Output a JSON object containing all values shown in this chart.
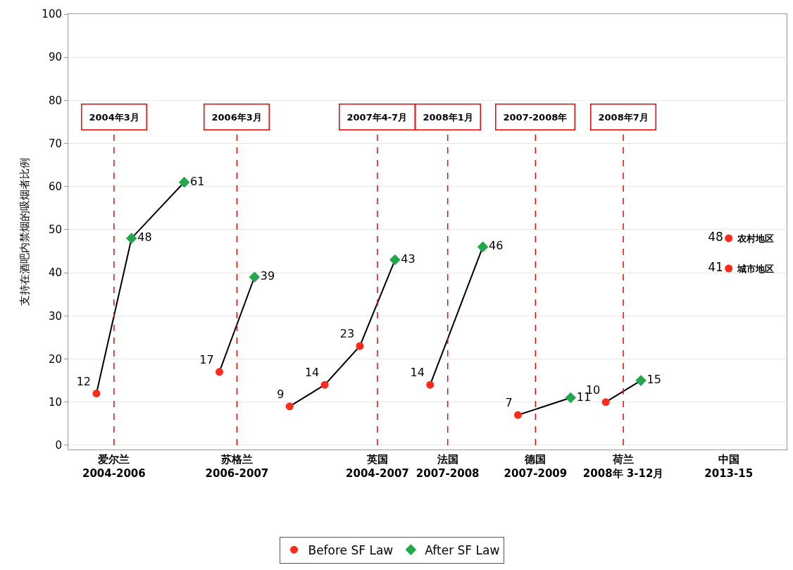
{
  "chart_data": {
    "type": "scatter",
    "ylabel": "支持在酒吧内禁烟的吸烟者比例",
    "categories": [
      null,
      null,
      "爱尔兰\n2004-2006",
      null,
      null,
      null,
      null,
      null,
      null,
      "苏格兰\n2006-2007",
      null,
      null,
      null,
      null,
      null,
      null,
      null,
      "英国\n2004-2007",
      null,
      null,
      null,
      "法国\n2007-2008",
      null,
      null,
      null,
      null,
      "德国\n2007-2009",
      null,
      null,
      null,
      null,
      "荷兰\n2008年 3-12月",
      null,
      null,
      null,
      null,
      null,
      "中国\n2013-15",
      null,
      null,
      null
    ],
    "ylim": [
      -1,
      100
    ],
    "yticks": [
      0,
      10,
      20,
      30,
      40,
      50,
      60,
      70,
      80,
      90,
      100
    ],
    "grid": "y",
    "legend": "bottom",
    "series": [
      {
        "type": "line",
        "color": "#000000",
        "marker": "none",
        "values": [
          null,
          12,
          null,
          48,
          null,
          null,
          61,
          null,
          null,
          null,
          null,
          null,
          null,
          null,
          null,
          null,
          null,
          null,
          null,
          null,
          null,
          null,
          null,
          null,
          null,
          null,
          null,
          null,
          null,
          null,
          null,
          null,
          null,
          null,
          null,
          null,
          null,
          null,
          null,
          null,
          null
        ]
      },
      {
        "type": "line",
        "color": "#000000",
        "marker": "none",
        "values": [
          null,
          null,
          null,
          null,
          null,
          null,
          null,
          null,
          17,
          null,
          39,
          null,
          null,
          null,
          null,
          null,
          null,
          null,
          null,
          null,
          null,
          null,
          null,
          null,
          null,
          null,
          null,
          null,
          null,
          null,
          null,
          null,
          null,
          null,
          null,
          null,
          null,
          null,
          null,
          null,
          null
        ]
      },
      {
        "type": "line",
        "color": "#000000",
        "marker": "none",
        "values": [
          null,
          null,
          null,
          null,
          null,
          null,
          null,
          null,
          null,
          null,
          null,
          null,
          9,
          null,
          14,
          null,
          23,
          null,
          43,
          null,
          null,
          null,
          null,
          null,
          null,
          null,
          null,
          null,
          null,
          null,
          null,
          null,
          null,
          null,
          null,
          null,
          null,
          null,
          null,
          null,
          null
        ]
      },
      {
        "type": "line",
        "color": "#000000",
        "marker": "none",
        "values": [
          null,
          null,
          null,
          null,
          null,
          null,
          null,
          null,
          null,
          null,
          null,
          null,
          null,
          null,
          null,
          null,
          null,
          null,
          null,
          null,
          14,
          null,
          null,
          46,
          null,
          null,
          null,
          null,
          null,
          null,
          null,
          null,
          null,
          null,
          null,
          null,
          null,
          null,
          null,
          null,
          null
        ]
      },
      {
        "type": "line",
        "color": "#000000",
        "marker": "none",
        "values": [
          null,
          null,
          null,
          null,
          null,
          null,
          null,
          null,
          null,
          null,
          null,
          null,
          null,
          null,
          null,
          null,
          null,
          null,
          null,
          null,
          null,
          null,
          null,
          null,
          null,
          7,
          null,
          null,
          11,
          null,
          null,
          null,
          null,
          null,
          null,
          null,
          null,
          null,
          null,
          null,
          null
        ]
      },
      {
        "type": "line",
        "color": "#000000",
        "marker": "none",
        "values": [
          null,
          null,
          null,
          null,
          null,
          null,
          null,
          null,
          null,
          null,
          null,
          null,
          null,
          null,
          null,
          null,
          null,
          null,
          null,
          null,
          null,
          null,
          null,
          null,
          null,
          null,
          null,
          null,
          null,
          null,
          10,
          null,
          15,
          null,
          null,
          null,
          null,
          null,
          null,
          null,
          null
        ]
      },
      {
        "name": "Before SF Law",
        "color": "#ff2a1a",
        "marker": "circle",
        "values": [
          null,
          12,
          null,
          null,
          null,
          null,
          null,
          null,
          17,
          null,
          null,
          null,
          9,
          null,
          14,
          null,
          23,
          null,
          null,
          null,
          14,
          null,
          null,
          null,
          null,
          7,
          null,
          null,
          null,
          null,
          10,
          null,
          null,
          null,
          null,
          null,
          null,
          null,
          null,
          null,
          null
        ],
        "value_labels": [
          null,
          "12",
          null,
          null,
          null,
          null,
          null,
          null,
          "17",
          null,
          null,
          null,
          "9",
          null,
          "14",
          null,
          "23",
          null,
          null,
          null,
          "14",
          null,
          null,
          null,
          null,
          "7",
          null,
          null,
          null,
          null,
          "10",
          null,
          null,
          null,
          null,
          null,
          null,
          null,
          null,
          null,
          null
        ]
      },
      {
        "name": "After SF Law",
        "color": "#22a84a",
        "marker": "diamond",
        "values": [
          null,
          null,
          null,
          48,
          null,
          null,
          61,
          null,
          null,
          null,
          39,
          null,
          null,
          null,
          null,
          null,
          null,
          null,
          43,
          null,
          null,
          null,
          null,
          46,
          null,
          null,
          null,
          null,
          11,
          null,
          null,
          null,
          15,
          null,
          null,
          null,
          null,
          null,
          null,
          null,
          null
        ],
        "value_labels": [
          null,
          null,
          null,
          "48",
          null,
          null,
          "61",
          null,
          null,
          null,
          "39",
          null,
          null,
          null,
          null,
          null,
          null,
          null,
          "43",
          null,
          null,
          null,
          null,
          "46",
          null,
          null,
          null,
          null,
          "11",
          null,
          null,
          null,
          "15",
          null,
          null,
          null,
          null,
          null,
          null,
          null,
          null
        ]
      },
      {
        "name": "农村地区",
        "color": "#ff2a1a",
        "marker": "circle",
        "values": [
          null,
          null,
          null,
          null,
          null,
          null,
          null,
          null,
          null,
          null,
          null,
          null,
          null,
          null,
          null,
          null,
          null,
          null,
          null,
          null,
          null,
          null,
          null,
          null,
          null,
          null,
          null,
          null,
          null,
          null,
          null,
          null,
          null,
          null,
          null,
          null,
          null,
          48,
          null,
          null,
          null
        ],
        "value_labels": [
          null,
          null,
          null,
          null,
          null,
          null,
          null,
          null,
          null,
          null,
          null,
          null,
          null,
          null,
          null,
          null,
          null,
          null,
          null,
          null,
          null,
          null,
          null,
          null,
          null,
          null,
          null,
          null,
          null,
          null,
          null,
          null,
          null,
          null,
          null,
          null,
          null,
          "48",
          null,
          null,
          null
        ]
      },
      {
        "name": "城市地区",
        "color": "#ff2a1a",
        "marker": "circle",
        "values": [
          null,
          null,
          null,
          null,
          null,
          null,
          null,
          null,
          null,
          null,
          null,
          null,
          null,
          null,
          null,
          null,
          null,
          null,
          null,
          null,
          null,
          null,
          null,
          null,
          null,
          null,
          null,
          null,
          null,
          null,
          null,
          null,
          null,
          null,
          null,
          null,
          null,
          41,
          null,
          null,
          null
        ],
        "value_labels": [
          null,
          null,
          null,
          null,
          null,
          null,
          null,
          null,
          null,
          null,
          null,
          null,
          null,
          null,
          null,
          null,
          null,
          null,
          null,
          null,
          null,
          null,
          null,
          null,
          null,
          null,
          null,
          null,
          null,
          null,
          null,
          null,
          null,
          null,
          null,
          null,
          null,
          "41",
          null,
          null,
          null
        ]
      }
    ],
    "ref_lines": [
      {
        "axis": "x",
        "value": "爱尔兰\n2004-2006",
        "label": "2004年3月",
        "color": "#ff0000",
        "line_style": "dashed"
      },
      {
        "axis": "x",
        "value": "苏格兰\n2006-2007",
        "label": "2006年3月",
        "color": "#ff0000",
        "line_style": "dashed"
      },
      {
        "axis": "x",
        "value": "英国\n2004-2007",
        "label": "2007年4-7月",
        "color": "#ff0000",
        "line_style": "dashed"
      },
      {
        "axis": "x",
        "value": "法国\n2007-2008",
        "label": "2008年1月",
        "color": "#ff0000",
        "line_style": "dashed"
      },
      {
        "axis": "x",
        "value": "德国\n2007-2009",
        "label": "2007-2008年",
        "color": "#ff0000",
        "line_style": "dashed"
      },
      {
        "axis": "x",
        "value": "荷兰\n2008年 3-12月",
        "label": "2008年7月",
        "color": "#ff0000",
        "line_style": "dashed"
      }
    ]
  }
}
